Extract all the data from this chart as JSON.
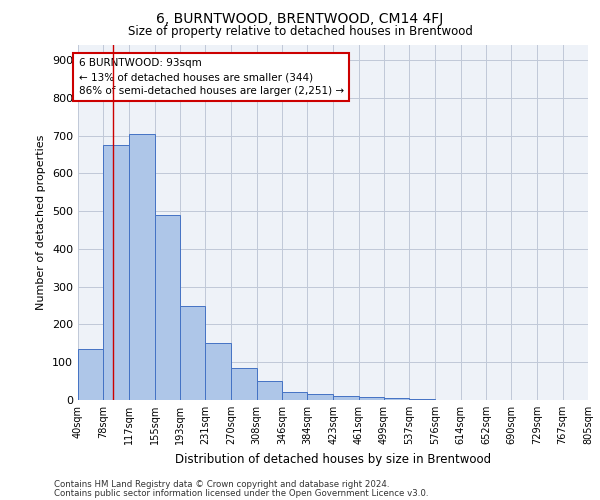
{
  "title": "6, BURNTWOOD, BRENTWOOD, CM14 4FJ",
  "subtitle": "Size of property relative to detached houses in Brentwood",
  "xlabel": "Distribution of detached houses by size in Brentwood",
  "ylabel": "Number of detached properties",
  "bin_edges": [
    40,
    78,
    117,
    155,
    193,
    231,
    270,
    308,
    346,
    384,
    423,
    461,
    499,
    537,
    576,
    614,
    652,
    690,
    729,
    767,
    805
  ],
  "bar_heights": [
    135,
    675,
    705,
    490,
    250,
    150,
    85,
    50,
    22,
    15,
    10,
    8,
    4,
    2,
    1,
    0,
    0,
    0,
    0,
    0
  ],
  "bar_color": "#aec6e8",
  "bar_edge_color": "#4472c4",
  "grid_color": "#c0c8d8",
  "vline_x": 93,
  "vline_color": "#cc0000",
  "annotation_text": "6 BURNTWOOD: 93sqm\n← 13% of detached houses are smaller (344)\n86% of semi-detached houses are larger (2,251) →",
  "annotation_box_color": "#ffffff",
  "annotation_box_edge": "#cc0000",
  "ylim": [
    0,
    940
  ],
  "yticks": [
    0,
    100,
    200,
    300,
    400,
    500,
    600,
    700,
    800,
    900
  ],
  "footer_line1": "Contains HM Land Registry data © Crown copyright and database right 2024.",
  "footer_line2": "Contains public sector information licensed under the Open Government Licence v3.0.",
  "background_color": "#eef2f8"
}
